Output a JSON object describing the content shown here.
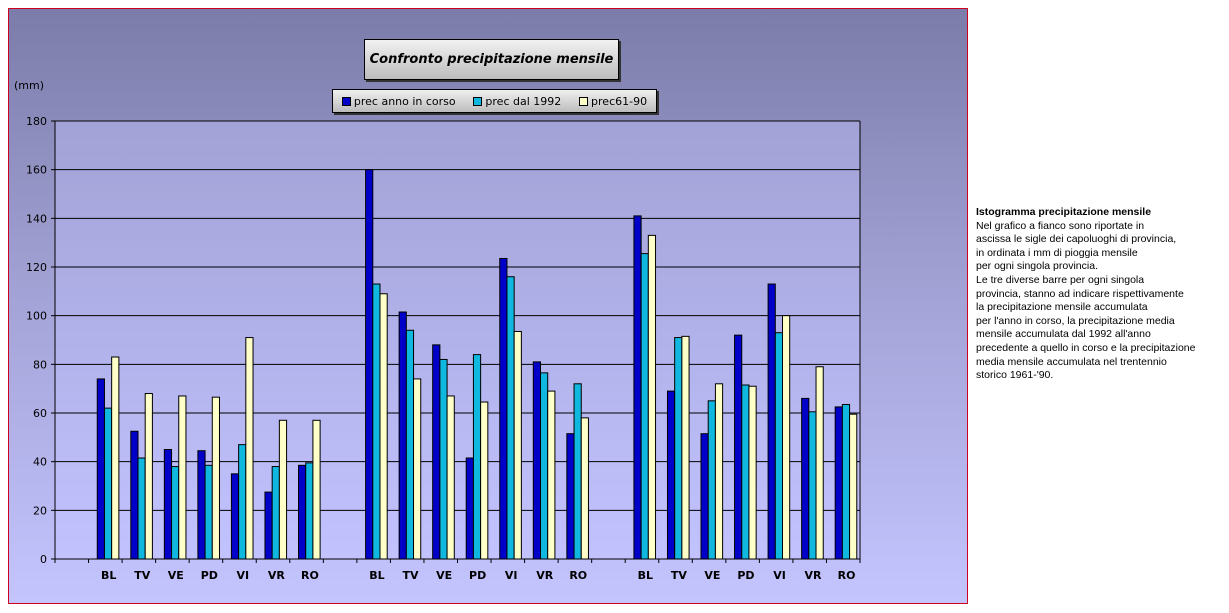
{
  "chart_data": {
    "type": "bar",
    "title": "Confronto precipitazione mensile",
    "ylabel": "(mm)",
    "ylim": [
      0,
      180
    ],
    "yticks": [
      0,
      20,
      40,
      60,
      80,
      100,
      120,
      140,
      160,
      180
    ],
    "grid": true,
    "legend_position": "top",
    "categories": [
      "",
      "BL",
      "TV",
      "VE",
      "PD",
      "VI",
      "VR",
      "RO",
      "",
      "BL",
      "TV",
      "VE",
      "PD",
      "VI",
      "VR",
      "RO",
      "",
      "BL",
      "TV",
      "VE",
      "PD",
      "VI",
      "VR",
      "RO"
    ],
    "series": [
      {
        "name": "prec anno in corso",
        "color": "#0000c8",
        "values": [
          null,
          74,
          52.5,
          45,
          44.5,
          35,
          27.5,
          38.5,
          null,
          160,
          101.5,
          88,
          41.5,
          123.5,
          81,
          51.5,
          null,
          141,
          69,
          51.5,
          92,
          113,
          66,
          62.5
        ]
      },
      {
        "name": "prec dal 1992",
        "color": "#10b8e0",
        "values": [
          null,
          62,
          41.5,
          38,
          38.5,
          47,
          38,
          39.5,
          null,
          113,
          94,
          82,
          84,
          116,
          76.5,
          72,
          null,
          125.5,
          91,
          65,
          71.5,
          93,
          60.5,
          63.5
        ]
      },
      {
        "name": "prec61-90",
        "color": "#ffffc8",
        "values": [
          null,
          83,
          68,
          67,
          66.5,
          91,
          57,
          57,
          null,
          109,
          74,
          67,
          64.5,
          93.5,
          69,
          58,
          null,
          133,
          91.5,
          72,
          71,
          100,
          79,
          59.5
        ]
      }
    ]
  },
  "note": {
    "title": "Istogramma precipitazione mensile",
    "lines": [
      "Nel grafico a fianco sono riportate in",
      "ascissa le sigle dei capoluoghi di provincia,",
      "in ordinata i mm di pioggia mensile",
      "per ogni singola provincia.",
      "Le tre diverse barre per ogni singola",
      "provincia, stanno ad indicare rispettivamente",
      "la precipitazione mensile accumulata",
      "per l'anno in corso, la precipitazione media",
      "mensile accumulata dal 1992 all'anno",
      "precedente a quello in corso e la precipitazione",
      "media mensile accumulata nel trentennio",
      "storico 1961-'90."
    ]
  }
}
